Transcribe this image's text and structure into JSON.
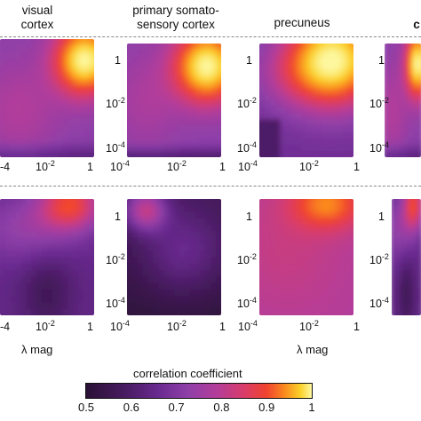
{
  "titles": {
    "col1": [
      "visual",
      "cortex"
    ],
    "col2": [
      "primary somato-",
      "sensory cortex"
    ],
    "col3": [
      "precuneus"
    ],
    "col4": "c"
  },
  "y_ticks": [
    "1",
    "10-2",
    "10-4"
  ],
  "x_ticks": [
    "10-4",
    "10-2",
    "1"
  ],
  "x_tick_edge": "-4",
  "x_axis_label": "λ mag",
  "colorbar": {
    "title": "correlation coefficient",
    "ticks": [
      "0.5",
      "0.6",
      "0.7",
      "0.8",
      "0.9",
      "1"
    ],
    "range": [
      0.5,
      1.0
    ],
    "colors": [
      "#2a1035",
      "#4a1c63",
      "#6a2a90",
      "#8e3fa8",
      "#b33d9a",
      "#d93c6a",
      "#f0432f",
      "#fa8a1e",
      "#fbd12a",
      "#fdf8a0"
    ]
  },
  "chart_data": {
    "type": "heatmap",
    "title": "",
    "xlabel": "λ mag",
    "ylabel": "",
    "x_scale": "log",
    "y_scale": "log",
    "xlim": [
      0.0001,
      1
    ],
    "ylim": [
      0.0001,
      1
    ],
    "color_range": [
      0.5,
      1.0
    ],
    "panels": [
      {
        "row": "top",
        "region": "visual cortex",
        "min_value": 0.6,
        "max_value": 1.0
      },
      {
        "row": "top",
        "region": "primary somatosensory cortex",
        "min_value": 0.6,
        "max_value": 1.0
      },
      {
        "row": "top",
        "region": "precuneus",
        "min_value": 0.55,
        "max_value": 1.0
      },
      {
        "row": "bottom",
        "region": "visual cortex",
        "min_value": 0.55,
        "max_value": 0.85
      },
      {
        "row": "bottom",
        "region": "primary somatosensory cortex",
        "min_value": 0.5,
        "max_value": 0.8
      },
      {
        "row": "bottom",
        "region": "precuneus",
        "min_value": 0.7,
        "max_value": 0.88
      }
    ]
  }
}
